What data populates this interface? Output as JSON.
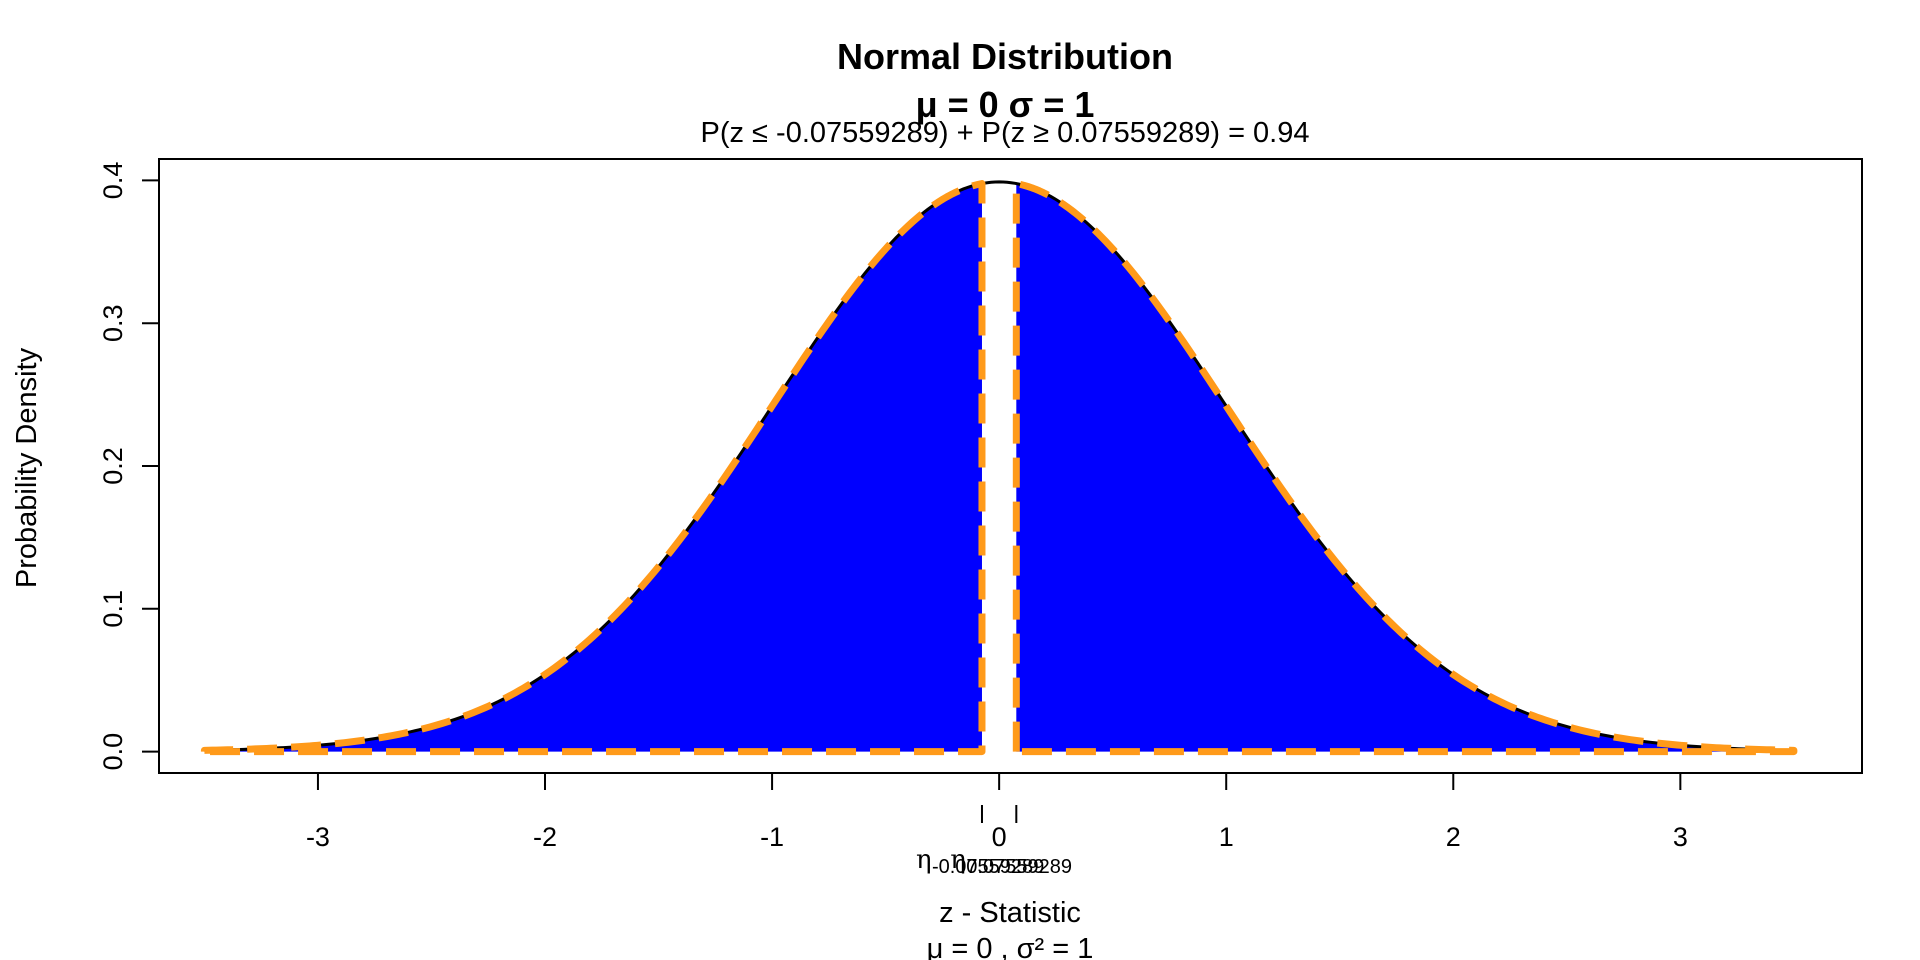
{
  "chart_data": {
    "type": "area",
    "title": "Normal Distribution",
    "title_line2": "μ  =  0   σ  =  1",
    "subtitle": "P(z ≤ -0.07559289) + P(z ≥ 0.07559289) = 0.94",
    "xlabel": "z - Statistic",
    "xlabel_line2": "μ =  0 , σ² =  1",
    "ylabel": "Probability Density",
    "xlim": [
      -3.7,
      3.8
    ],
    "ylim": [
      -0.015,
      0.415
    ],
    "x_ticks": [
      -3,
      -2,
      -1,
      0,
      1,
      2,
      3
    ],
    "y_ticks": [
      0.0,
      0.1,
      0.2,
      0.3,
      0.4
    ],
    "x_tick_labels": [
      "-3",
      "-2",
      "-1",
      "0",
      "1",
      "2",
      "3"
    ],
    "y_tick_labels": [
      "0.0",
      "0.1",
      "0.2",
      "0.3",
      "0.4"
    ],
    "mean": 0,
    "sd": 1,
    "curve_range": [
      -3.5,
      3.5
    ],
    "critical_values": [
      -0.07559289,
      0.07559289
    ],
    "critical_labels": [
      "η",
      "-0.07559289",
      "η",
      "0.07559289"
    ],
    "shaded_regions": [
      {
        "name": "lower tail",
        "from": -3.5,
        "to": -0.07559289
      },
      {
        "name": "upper tail",
        "from": 0.07559289,
        "to": 3.5
      }
    ],
    "probability": 0.94,
    "grid": false,
    "colors": {
      "fill": "#0000ff",
      "curve": "#000000",
      "dashed_outline": "#ff9a1a",
      "frame": "#000000"
    }
  }
}
